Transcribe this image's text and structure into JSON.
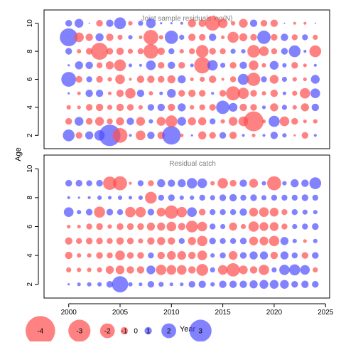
{
  "chart_data": [
    {
      "type": "bubble",
      "title": "Joint sample residuals log(N)",
      "ylabel": "Age",
      "xlim": [
        1997.6,
        2025.4
      ],
      "ylim": [
        1.05,
        10.95
      ],
      "yticks": [
        2,
        4,
        6,
        8,
        10
      ],
      "xticks": [
        2000,
        2005,
        2010,
        2015,
        2020,
        2025
      ],
      "colors": {
        "positive": "#4d4dff",
        "negative": "#ff4d4d"
      },
      "years": [
        2000,
        2001,
        2002,
        2003,
        2004,
        2005,
        2006,
        2007,
        2008,
        2009,
        2010,
        2011,
        2012,
        2013,
        2014,
        2015,
        2016,
        2017,
        2018,
        2019,
        2020,
        2021,
        2022,
        2023,
        2024
      ],
      "ages": [
        2,
        3,
        4,
        5,
        6,
        7,
        8,
        9,
        10
      ],
      "residuals": {
        "2": [
          1.6,
          -0.9,
          1.1,
          1.4,
          2.9,
          -2.0,
          0.4,
          -1.3,
          1.0,
          -1.0,
          2.5,
          -0.5,
          0.3,
          -1.1,
          -0.9,
          0.9,
          -1.0,
          0.4,
          -0.5,
          0.4,
          1.0,
          0.6,
          -0.3,
          -0.9,
          0.4
        ],
        "3": [
          -0.9,
          1.2,
          -0.9,
          -1.2,
          -0.8,
          -1.1,
          1.0,
          -1.2,
          0.6,
          -1.2,
          -1.6,
          1.2,
          -1.1,
          -1.1,
          0.8,
          -0.6,
          -1.2,
          -1.3,
          -2.7,
          -0.5,
          1.5,
          -1.3,
          -0.9,
          -0.5,
          -0.6
        ],
        "4": [
          -0.6,
          -0.5,
          -0.9,
          -1.0,
          -0.7,
          -1.0,
          -0.9,
          -0.6,
          0.9,
          1.0,
          -1.0,
          1.1,
          -0.6,
          -0.8,
          -0.9,
          1.8,
          1.2,
          -1.0,
          -0.9,
          0.5,
          -1.1,
          0.7,
          -0.6,
          -1.1,
          1.0
        ],
        "5": [
          0.3,
          -0.5,
          1.0,
          1.0,
          -0.5,
          -1.0,
          -1.4,
          1.0,
          -0.6,
          0.5,
          1.2,
          -0.9,
          -1.0,
          -0.9,
          0.4,
          -0.9,
          -1.9,
          -1.5,
          -0.9,
          -0.6,
          -1.0,
          0.5,
          -0.7,
          -1.4,
          1.3
        ],
        "6": [
          2.0,
          -0.9,
          0.8,
          -0.9,
          -0.6,
          -1.3,
          -0.4,
          -1.0,
          -1.0,
          -0.9,
          -1.1,
          1.1,
          -0.5,
          -0.7,
          -1.0,
          -0.4,
          -0.8,
          1.5,
          -1.8,
          0.8,
          -1.2,
          0.7,
          -0.6,
          -0.5,
          1.2
        ],
        "7": [
          0.3,
          1.1,
          1.0,
          -0.8,
          -1.1,
          -1.6,
          0.5,
          0.4,
          1.3,
          -0.9,
          1.0,
          -0.9,
          0.5,
          -2.2,
          1.4,
          0.7,
          -0.9,
          1.0,
          -1.3,
          -0.6,
          1.2,
          0.6,
          -0.9,
          -0.5,
          0.4
        ],
        "8": [
          0.9,
          -0.6,
          -0.9,
          -2.3,
          -0.9,
          -1.0,
          -0.7,
          -0.8,
          -2.0,
          -1.0,
          0.8,
          -0.6,
          -0.8,
          -1.7,
          -0.9,
          -0.8,
          0.7,
          0.6,
          -1.7,
          -1.3,
          -0.8,
          0.9,
          1.6,
          0.4,
          -1.6
        ],
        "9": [
          2.4,
          -1.3,
          -1.0,
          1.1,
          -1.0,
          -0.7,
          0.6,
          -0.5,
          -2.0,
          -0.6,
          1.8,
          0.7,
          -1.0,
          -0.9,
          1.0,
          -0.5,
          -1.5,
          -1.1,
          -0.9,
          1.8,
          -0.9,
          1.0,
          -0.8,
          0.8,
          -0.7
        ],
        "10": [
          0.9,
          1.2,
          0.2,
          -0.9,
          1.0,
          1.6,
          -0.6,
          0.7,
          1.3,
          0.3,
          0.3,
          0.4,
          -1.1,
          -1.0,
          -2.0,
          -1.3,
          -0.6,
          -1.2,
          1.0,
          -0.9,
          -1.0,
          0.2,
          -0.4,
          -0.4,
          0.2
        ]
      }
    },
    {
      "type": "bubble",
      "title": "Residual catch",
      "ylabel": "Age",
      "xlabel": "Year",
      "xlim": [
        1997.6,
        2025.4
      ],
      "ylim": [
        1.05,
        10.95
      ],
      "yticks": [
        2,
        4,
        6,
        8,
        10
      ],
      "xticks": [
        2000,
        2005,
        2010,
        2015,
        2020,
        2025
      ],
      "colors": {
        "positive": "#4d4dff",
        "negative": "#ff4d4d"
      },
      "years": [
        2000,
        2001,
        2002,
        2003,
        2004,
        2005,
        2006,
        2007,
        2008,
        2009,
        2010,
        2011,
        2012,
        2013,
        2014,
        2015,
        2016,
        2017,
        2018,
        2019,
        2020,
        2021,
        2022,
        2023,
        2024
      ],
      "ages": [
        2,
        3,
        4,
        5,
        6,
        7,
        8,
        9
      ],
      "residuals": {
        "2": [
          0.3,
          0.5,
          0.6,
          0.6,
          0.9,
          2.2,
          0.6,
          0.5,
          0.9,
          0.7,
          0.5,
          0.5,
          0.9,
          1.0,
          0.6,
          1.0,
          1.0,
          1.0,
          1.1,
          1.2,
          1.2,
          1.2,
          0.9,
          1.0,
          0.9
        ],
        "3": [
          -0.7,
          -0.6,
          -0.6,
          -0.7,
          -1.1,
          -1.2,
          -1.0,
          -1.0,
          1.2,
          -1.4,
          -1.3,
          -1.3,
          -1.0,
          -1.6,
          0.7,
          -1.3,
          -1.8,
          -1.2,
          -1.0,
          -1.4,
          0.7,
          1.4,
          1.5,
          1.3,
          -0.7
        ],
        "4": [
          -1.0,
          -0.6,
          -0.6,
          -0.9,
          -0.8,
          -1.3,
          -0.9,
          -0.9,
          0.8,
          -1.0,
          -1.2,
          -1.2,
          -1.0,
          -1.3,
          0.6,
          0.8,
          -1.2,
          0.9,
          1.1,
          1.1,
          -1.0,
          1.1,
          0.8,
          -0.9,
          0.9
        ],
        "5": [
          -1.0,
          -0.8,
          -0.9,
          -0.9,
          -0.8,
          -1.0,
          -0.9,
          -0.7,
          -1.0,
          -1.1,
          -1.0,
          0.8,
          -1.1,
          -1.4,
          0.9,
          0.8,
          0.8,
          0.9,
          -1.2,
          -1.2,
          -1.4,
          1.1,
          0.6,
          -0.5,
          0.6
        ],
        "6": [
          -0.5,
          -0.5,
          -0.8,
          -0.9,
          -0.6,
          -0.9,
          -0.9,
          -0.9,
          -1.1,
          -1.1,
          -1.3,
          -1.0,
          -1.6,
          -1.3,
          0.8,
          0.7,
          -1.1,
          -0.7,
          -1.4,
          -1.2,
          -1.2,
          -0.8,
          0.7,
          0.8,
          0.9
        ],
        "7": [
          1.3,
          0.6,
          0.9,
          -1.5,
          0.9,
          0.8,
          -1.4,
          -1.4,
          0.9,
          -1.2,
          -1.8,
          -1.4,
          1.3,
          -0.9,
          0.8,
          0.8,
          0.8,
          1.0,
          -1.2,
          -1.3,
          -1.2,
          -0.8,
          0.8,
          0.7,
          0.6
        ],
        "8": [
          0.4,
          0.3,
          0.4,
          0.6,
          0.5,
          0.6,
          0.5,
          0.6,
          -1.6,
          0.8,
          0.9,
          0.6,
          0.6,
          0.8,
          0.7,
          0.9,
          1.0,
          0.8,
          0.9,
          0.7,
          0.8,
          0.8,
          0.8,
          0.9,
          0.8
        ],
        "9": [
          0.9,
          0.9,
          0.8,
          0.9,
          -1.8,
          -1.9,
          -0.4,
          0.8,
          -0.8,
          1.1,
          1.0,
          1.1,
          1.4,
          1.3,
          -0.6,
          -1.4,
          -0.9,
          1.0,
          -1.2,
          0.6,
          -1.9,
          0.6,
          1.1,
          1.0,
          1.6
        ]
      }
    }
  ],
  "legend": {
    "items": [
      {
        "label": "-4",
        "value": -4
      },
      {
        "label": "-3",
        "value": -3
      },
      {
        "label": "-2",
        "value": -2
      },
      {
        "label": "-1",
        "value": -1
      },
      {
        "label": "0",
        "value": 0
      },
      {
        "label": "1",
        "value": 1
      },
      {
        "label": "2",
        "value": 2
      },
      {
        "label": "3",
        "value": 3
      }
    ]
  }
}
